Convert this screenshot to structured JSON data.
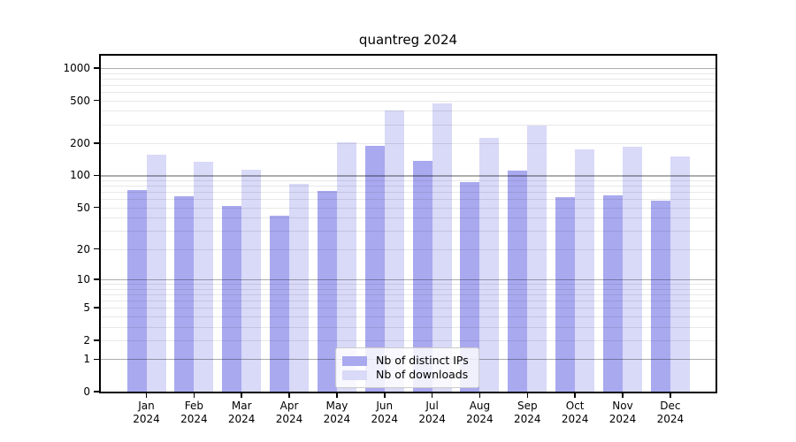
{
  "chart_data": {
    "type": "bar",
    "title": "quantreg 2024",
    "categories": [
      "Jan 2024",
      "Feb 2024",
      "Mar 2024",
      "Apr 2024",
      "May 2024",
      "Jun 2024",
      "Jul 2024",
      "Aug 2024",
      "Sep 2024",
      "Oct 2024",
      "Nov 2024",
      "Dec 2024"
    ],
    "series": [
      {
        "name": "Nb of distinct IPs",
        "color": "#a9a9f0",
        "values": [
          73,
          64,
          52,
          42,
          72,
          189,
          137,
          87,
          112,
          63,
          65,
          58
        ]
      },
      {
        "name": "Nb of downloads",
        "color": "#d9d9f8",
        "values": [
          156,
          134,
          113,
          84,
          204,
          403,
          469,
          224,
          292,
          175,
          185,
          150
        ]
      }
    ],
    "xlabel": "",
    "ylabel": "",
    "y_axis": {
      "scale": "log1p",
      "tick_values": [
        0,
        1,
        2,
        5,
        10,
        20,
        50,
        100,
        200,
        500,
        1000
      ],
      "major_grid_values": [
        1,
        10,
        100,
        1000
      ],
      "minor_grid_values": [
        2,
        3,
        4,
        5,
        6,
        7,
        8,
        9,
        20,
        30,
        40,
        50,
        60,
        70,
        80,
        90,
        200,
        300,
        400,
        500,
        600,
        700,
        800,
        900
      ],
      "ylim": [
        0,
        1340
      ]
    },
    "legend": {
      "position": "bottom-center"
    },
    "grid": true
  }
}
